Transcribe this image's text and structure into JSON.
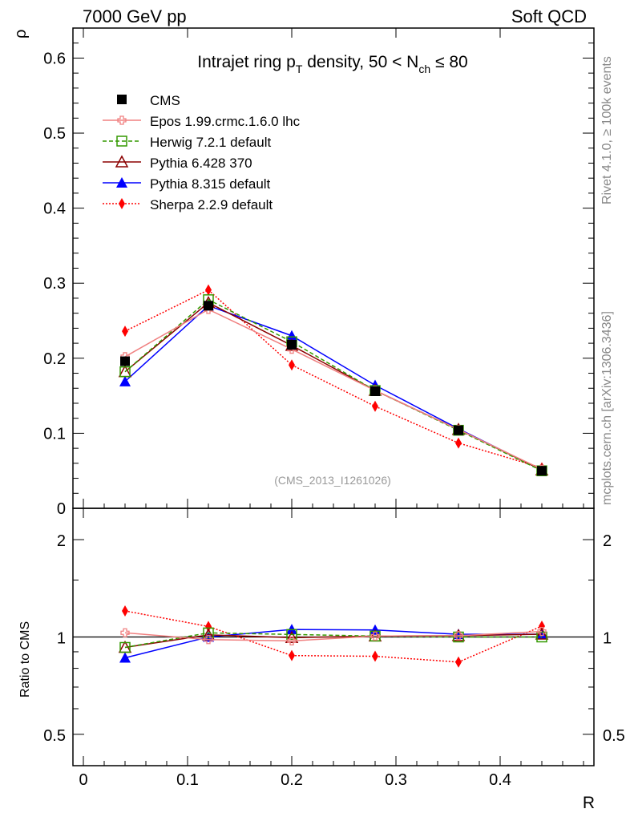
{
  "header": {
    "left": "7000 GeV pp",
    "right": "Soft QCD"
  },
  "side": {
    "top": "Rivet 4.1.0, ≥ 100k events",
    "bottom": "mcplots.cern.ch [arXiv:1306.3436]"
  },
  "chart_data": {
    "type": "line",
    "title": "Intrajet ring pT density, 50 < Nch ≤ 80",
    "title_parts": {
      "a": "Intrajet ring p",
      "a_sub": "T",
      "b": " density, 50 < N",
      "b_sub": "ch",
      "c": " ≤ 80"
    },
    "xlabel": "R",
    "ylabel": "ρ",
    "ratio_ylabel": "Ratio to CMS",
    "watermark": "(CMS_2013_I1261026)",
    "xlim": [
      -0.01,
      0.49
    ],
    "ylim": [
      0,
      0.64
    ],
    "ratio_ylim": [
      0.4,
      2.5
    ],
    "ratio_scale": "log",
    "xticks": [
      "0",
      "0.1",
      "0.2",
      "0.3",
      "0.4"
    ],
    "yticks": [
      "0",
      "0.1",
      "0.2",
      "0.3",
      "0.4",
      "0.5",
      "0.6"
    ],
    "ratio_yticks": [
      "0.5",
      "1",
      "2"
    ],
    "x": [
      0.04,
      0.12,
      0.2,
      0.28,
      0.36,
      0.44
    ],
    "legend_position": "top-left",
    "series": [
      {
        "name": "CMS",
        "color": "#000000",
        "marker": "square",
        "dash": "none",
        "values": [
          0.196,
          0.27,
          0.218,
          0.156,
          0.104,
          0.05
        ]
      },
      {
        "name": "Epos 1.99.crmc.1.6.0 lhc",
        "color": "#f08080",
        "marker": "cross",
        "dash": "solid",
        "values": [
          0.202,
          0.265,
          0.212,
          0.157,
          0.105,
          0.052
        ]
      },
      {
        "name": "Herwig 7.2.1 default",
        "color": "#339900",
        "marker": "open-square",
        "dash": "dashed",
        "values": [
          0.182,
          0.278,
          0.222,
          0.157,
          0.104,
          0.05
        ]
      },
      {
        "name": "Pythia 6.428 370",
        "color": "#8b0000",
        "marker": "open-triangle",
        "dash": "solid",
        "values": [
          0.182,
          0.274,
          0.217,
          0.157,
          0.105,
          0.051
        ]
      },
      {
        "name": "Pythia 8.315 default",
        "color": "#0000ff",
        "marker": "triangle",
        "dash": "solid",
        "values": [
          0.169,
          0.27,
          0.23,
          0.164,
          0.106,
          0.051
        ]
      },
      {
        "name": "Sherpa 2.2.9 default",
        "color": "#ff0000",
        "marker": "diamond",
        "dash": "dotted",
        "values": [
          0.236,
          0.291,
          0.191,
          0.136,
          0.087,
          0.054
        ]
      }
    ]
  }
}
